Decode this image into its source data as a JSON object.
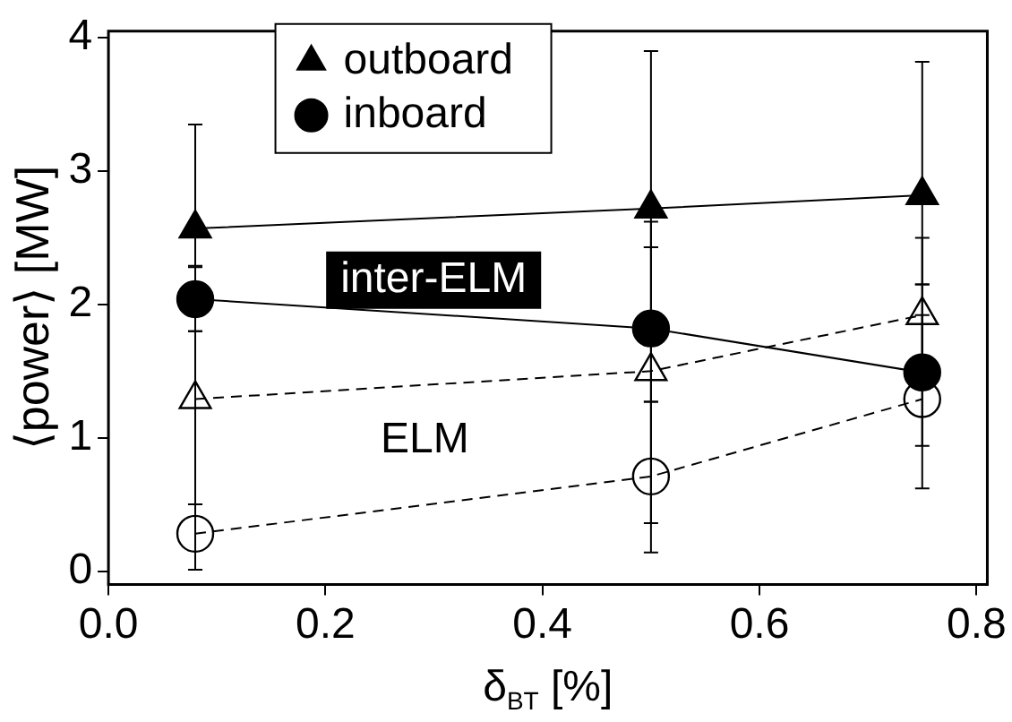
{
  "chart_data": {
    "type": "line",
    "xlabel": "δ$_{BT}$ [%]",
    "ylabel": "⟨power⟩ [MW]",
    "x": [
      0.08,
      0.5,
      0.75
    ],
    "series": [
      {
        "name": "outboard",
        "color": "#000000",
        "values": [
          2.57,
          2.72,
          2.82
        ],
        "errors": [
          [
            2.29,
            3.35
          ],
          [
            2.43,
            3.9
          ],
          [
            2.15,
            3.82
          ]
        ],
        "marker": "triangle",
        "line_style": "solid"
      },
      {
        "name": "inboard",
        "color": "#000000",
        "values": [
          2.04,
          1.82,
          1.49
        ],
        "errors": [
          [
            1.8,
            2.28
          ],
          [
            1.27,
            2.43
          ],
          [
            0.94,
            2.15
          ]
        ],
        "marker": "circle",
        "line_style": "solid"
      },
      {
        "color": "#000000",
        "values": [
          1.29,
          1.5,
          1.92
        ],
        "errors": [
          [
            0.5,
            1.8
          ],
          [
            0.36,
            2.62
          ],
          [
            1.6,
            2.5
          ]
        ],
        "marker": "triangle",
        "line_style": "dashed"
      },
      {
        "color": "#000000",
        "values": [
          0.28,
          0.71,
          1.29
        ],
        "errors": [
          [
            0.01,
            0.5
          ],
          [
            0.14,
            1.27
          ],
          [
            0.62,
            1.92
          ]
        ],
        "marker": "circle",
        "line_style": "dashed"
      }
    ],
    "annotations": [
      "inter-ELM",
      "ELM"
    ],
    "xlim": [
      0,
      0.81
    ],
    "xticks": [
      {
        "value": 0,
        "label": "0.0"
      },
      {
        "value": 0.2,
        "label": "0.2"
      },
      {
        "value": 0.4,
        "label": "0.4"
      },
      {
        "value": 0.6,
        "label": "0.6"
      },
      {
        "value": 0.8,
        "label": "0.8"
      }
    ],
    "ylim": [
      -0.1,
      4.05
    ],
    "yticks": [
      0,
      1,
      2,
      3,
      4
    ],
    "grid": false,
    "legend": "top"
  }
}
